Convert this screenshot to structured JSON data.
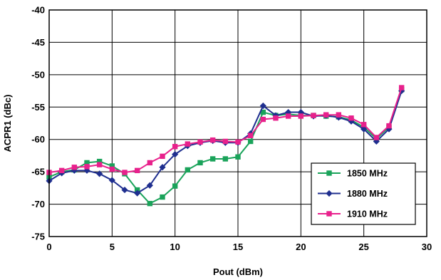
{
  "chart_data": {
    "type": "line",
    "title": "",
    "xlabel": "Pout (dBm)",
    "ylabel": "ACPR1 (dBc)",
    "xlim": [
      0,
      30
    ],
    "ylim": [
      -75,
      -40
    ],
    "x_ticks": [
      0,
      5,
      10,
      15,
      20,
      25,
      30
    ],
    "y_ticks": [
      -40,
      -45,
      -50,
      -55,
      -60,
      -65,
      -70,
      -75
    ],
    "grid": true,
    "legend_position": "lower-right",
    "series": [
      {
        "name": "1850 MHz",
        "color": "#1aa35a",
        "marker": "square",
        "x": [
          0,
          1,
          2,
          3,
          4,
          5,
          6,
          7,
          8,
          9,
          10,
          11,
          12,
          13,
          14,
          15,
          16,
          17,
          18,
          19,
          20,
          21,
          22,
          23,
          24,
          25,
          26,
          27,
          28
        ],
        "y": [
          -65.8,
          -65.0,
          -64.7,
          -63.6,
          -63.4,
          -64.1,
          -65.3,
          -67.8,
          -69.9,
          -68.9,
          -67.2,
          -64.7,
          -63.6,
          -63.0,
          -63.0,
          -62.7,
          -60.3,
          -55.8,
          -56.3,
          -56.1,
          -56.3,
          -56.3,
          -56.4,
          -56.5,
          -57.0,
          -58.1,
          -59.9,
          -58.1,
          -52.3
        ]
      },
      {
        "name": "1880 MHz",
        "color": "#1f2f8f",
        "marker": "diamond",
        "x": [
          0,
          1,
          2,
          3,
          4,
          5,
          6,
          7,
          8,
          9,
          10,
          11,
          12,
          13,
          14,
          15,
          16,
          17,
          18,
          19,
          20,
          21,
          22,
          23,
          24,
          25,
          26,
          27,
          28
        ],
        "y": [
          -66.4,
          -65.2,
          -64.8,
          -64.8,
          -65.3,
          -66.3,
          -67.8,
          -68.3,
          -67.1,
          -64.3,
          -62.3,
          -61.0,
          -60.5,
          -60.2,
          -60.5,
          -60.5,
          -59.1,
          -54.8,
          -56.3,
          -55.8,
          -55.8,
          -56.4,
          -56.3,
          -56.6,
          -57.2,
          -58.4,
          -60.3,
          -58.4,
          -52.5
        ]
      },
      {
        "name": "1910 MHz",
        "color": "#e8218c",
        "marker": "square",
        "x": [
          0,
          1,
          2,
          3,
          4,
          5,
          6,
          7,
          8,
          9,
          10,
          11,
          12,
          13,
          14,
          15,
          16,
          17,
          18,
          19,
          20,
          21,
          22,
          23,
          24,
          25,
          26,
          27,
          28
        ],
        "y": [
          -65.1,
          -64.8,
          -64.3,
          -64.2,
          -63.9,
          -64.6,
          -65.1,
          -64.8,
          -63.6,
          -62.6,
          -61.1,
          -60.7,
          -60.4,
          -60.1,
          -60.3,
          -60.4,
          -59.4,
          -56.9,
          -56.7,
          -56.4,
          -56.4,
          -56.3,
          -56.2,
          -56.2,
          -56.7,
          -57.7,
          -59.7,
          -57.9,
          -52.0
        ]
      }
    ]
  }
}
